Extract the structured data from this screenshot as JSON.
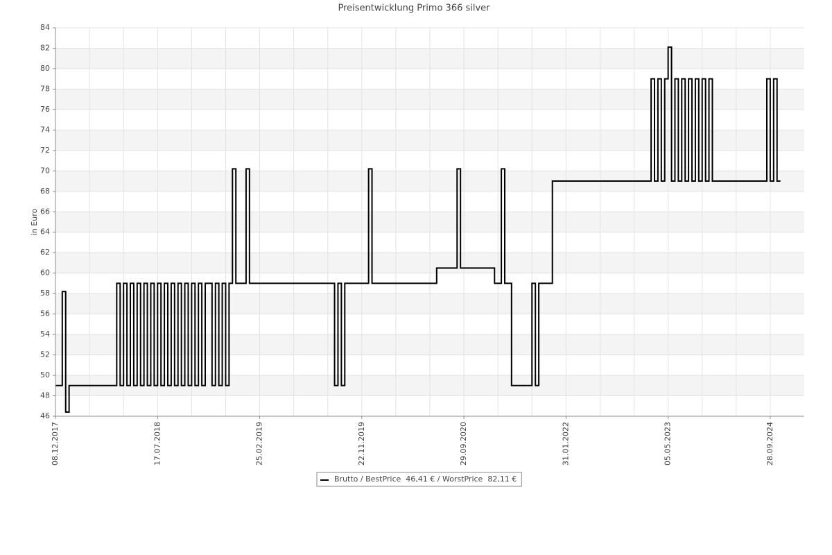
{
  "chart_data": {
    "type": "step-line",
    "title": "Preisentwicklung Primo 366 silver",
    "y_label": "in Euro",
    "ylim": [
      46,
      84
    ],
    "yticks": [
      46,
      48,
      50,
      52,
      54,
      56,
      58,
      60,
      62,
      64,
      66,
      68,
      70,
      72,
      74,
      76,
      78,
      80,
      82,
      84
    ],
    "grid": true,
    "legend": "bottom",
    "categories": [
      "08.12.2017",
      null,
      null,
      null,
      null,
      null,
      null,
      null,
      null,
      null,
      null,
      null,
      null,
      null,
      null,
      null,
      null,
      null,
      null,
      null,
      null,
      null,
      null,
      null,
      null,
      null,
      null,
      null,
      null,
      null,
      "17.07.2018",
      null,
      null,
      null,
      null,
      null,
      null,
      null,
      null,
      null,
      null,
      null,
      null,
      null,
      null,
      null,
      null,
      null,
      null,
      null,
      null,
      null,
      null,
      null,
      null,
      null,
      null,
      null,
      null,
      null,
      "25.02.2019",
      null,
      null,
      null,
      null,
      null,
      null,
      null,
      null,
      null,
      null,
      null,
      null,
      null,
      null,
      null,
      null,
      null,
      null,
      null,
      null,
      null,
      null,
      null,
      null,
      null,
      null,
      null,
      null,
      null,
      "22.11.2019",
      null,
      null,
      null,
      null,
      null,
      null,
      null,
      null,
      null,
      null,
      null,
      null,
      null,
      null,
      null,
      null,
      null,
      null,
      null,
      null,
      null,
      null,
      null,
      null,
      null,
      null,
      null,
      null,
      null,
      "29.09.2020",
      null,
      null,
      null,
      null,
      null,
      null,
      null,
      null,
      null,
      null,
      null,
      null,
      null,
      null,
      null,
      null,
      null,
      null,
      null,
      null,
      null,
      null,
      null,
      null,
      null,
      null,
      null,
      null,
      null,
      "31.01.2022",
      null,
      null,
      null,
      null,
      null,
      null,
      null,
      null,
      null,
      null,
      null,
      null,
      null,
      null,
      null,
      null,
      null,
      null,
      null,
      null,
      null,
      null,
      null,
      null,
      null,
      null,
      null,
      null,
      null,
      "05.05.2023",
      null,
      null,
      null,
      null,
      null,
      null,
      null,
      null,
      null,
      null,
      null,
      null,
      null,
      null,
      null,
      null,
      null,
      null,
      null,
      null,
      null,
      null,
      null,
      null,
      null,
      null,
      null,
      null,
      null,
      "28.09.2024",
      null,
      null,
      null,
      null,
      null,
      null,
      null,
      null,
      null
    ],
    "series": [
      {
        "name": "Brutto / BestPrice  46,41 € / WorstPrice  82,11 €",
        "color": "#000000",
        "values": [
          49,
          49,
          58.2,
          46.41,
          49,
          49,
          49,
          49,
          49,
          49,
          49,
          49,
          49,
          49,
          49,
          49,
          49,
          49,
          59,
          49,
          59,
          49,
          59,
          49,
          59,
          49,
          59,
          49,
          59,
          49,
          59,
          49,
          59,
          49,
          59,
          49,
          59,
          49,
          59,
          49,
          59,
          49,
          59,
          49,
          59,
          59,
          49,
          59,
          49,
          59,
          49,
          59,
          70.2,
          59,
          59,
          59,
          70.2,
          59,
          59,
          59,
          59,
          59,
          59,
          59,
          59,
          59,
          59,
          59,
          59,
          59,
          59,
          59,
          59,
          59,
          59,
          59,
          59,
          59,
          59,
          59,
          59,
          59,
          49,
          59,
          49,
          59,
          59,
          59,
          59,
          59,
          59,
          59,
          70.2,
          59,
          59,
          59,
          59,
          59,
          59,
          59,
          59,
          59,
          59,
          59,
          59,
          59,
          59,
          59,
          59,
          59,
          59,
          59,
          60.5,
          60.5,
          60.5,
          60.5,
          60.5,
          60.5,
          70.2,
          60.5,
          60.5,
          60.5,
          60.5,
          60.5,
          60.5,
          60.5,
          60.5,
          60.5,
          60.5,
          59,
          59,
          70.2,
          59,
          59,
          49,
          49,
          49,
          49,
          49,
          49,
          59,
          49,
          59,
          59,
          59,
          59,
          69,
          69,
          69,
          69,
          69,
          69,
          69,
          69,
          69,
          69,
          69,
          69,
          69,
          69,
          69,
          69,
          69,
          69,
          69,
          69,
          69,
          69,
          69,
          69,
          69,
          69,
          69,
          69,
          69,
          79,
          69,
          79,
          69,
          79,
          82.11,
          69,
          79,
          69,
          79,
          69,
          79,
          69,
          79,
          69,
          79,
          69,
          79,
          69,
          69,
          69,
          69,
          69,
          69,
          69,
          69,
          69,
          69,
          69,
          69,
          69,
          69,
          69,
          69,
          79,
          69,
          79,
          69,
          69,
          null,
          null,
          null,
          null,
          null,
          null
        ]
      }
    ]
  }
}
